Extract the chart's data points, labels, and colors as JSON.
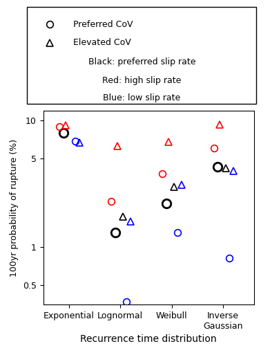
{
  "categories": [
    "Exponential",
    "Lognormal",
    "Weibull",
    "Inverse\nGaussian"
  ],
  "x_positions": [
    1,
    2,
    3,
    4
  ],
  "xlabel": "Recurrence time distribution",
  "ylabel": "100yr probability of rupture (%)",
  "ylim": [
    0.35,
    12
  ],
  "yticks": [
    0.5,
    1,
    5,
    10
  ],
  "ytick_labels": [
    "0.5",
    "1",
    "5",
    "10"
  ],
  "data": {
    "black_circle": [
      8.0,
      1.3,
      2.2,
      4.3
    ],
    "black_triangle": [
      null,
      1.75,
      3.0,
      4.2
    ],
    "red_circle": [
      9.0,
      2.3,
      3.8,
      6.1
    ],
    "red_triangle": [
      9.2,
      6.3,
      6.8,
      9.3
    ],
    "blue_circle": [
      6.9,
      0.37,
      1.3,
      0.82
    ],
    "blue_triangle": [
      6.7,
      1.6,
      3.1,
      4.0
    ]
  },
  "x_offsets": {
    "black_circle": -0.1,
    "black_triangle": 0.05,
    "red_circle": -0.18,
    "red_triangle": -0.06,
    "blue_circle": 0.12,
    "blue_triangle": 0.2
  },
  "marker_size": 7,
  "preferred_marker_size": 9,
  "linewidth": 1.2,
  "preferred_linewidth": 2.0,
  "legend_text_lines": [
    "Black: preferred slip rate",
    "Red: high slip rate",
    "Blue: low slip rate"
  ],
  "legend_marker_labels": [
    "Preferred CoV",
    "Elevated CoV"
  ]
}
